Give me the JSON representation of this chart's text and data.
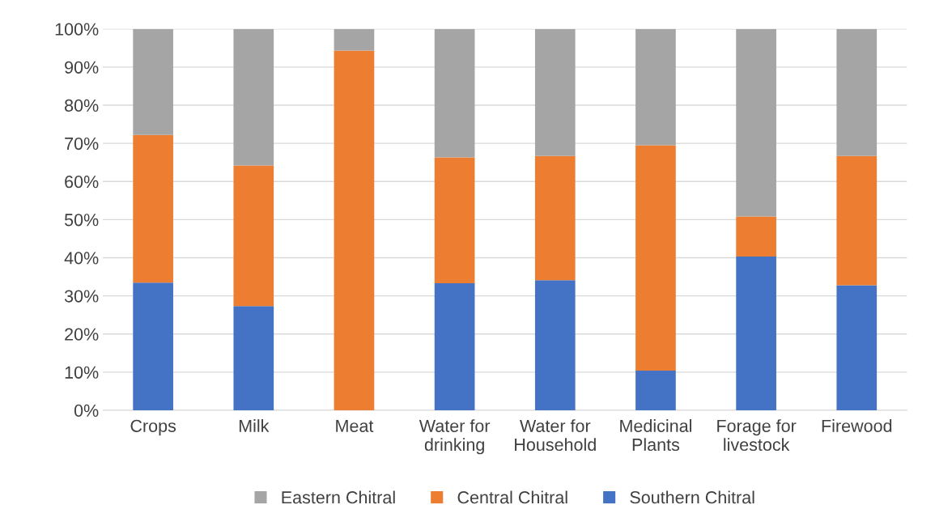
{
  "chart_data": {
    "type": "bar",
    "stacked": true,
    "categories": [
      "Crops",
      "Milk",
      "Meat",
      "Water for\ndrinking",
      "Water for\nHousehold",
      "Medicinal\nPlants",
      "Forage for\nlivestock",
      "Firewood"
    ],
    "series": [
      {
        "name": "Southern Chitral",
        "color": "#4472c4",
        "values": [
          33.5,
          27.3,
          0,
          33.3,
          34.1,
          10.4,
          40.3,
          32.8
        ]
      },
      {
        "name": "Central Chitral",
        "color": "#ed7d31",
        "values": [
          38.7,
          36.9,
          94.3,
          33.0,
          32.6,
          59.1,
          10.5,
          33.9
        ]
      },
      {
        "name": "Eastern Chitral",
        "color": "#a5a5a5",
        "values": [
          27.8,
          35.8,
          5.7,
          33.7,
          33.3,
          30.5,
          49.2,
          33.3
        ]
      }
    ],
    "ylim": [
      0,
      100
    ],
    "yticks": [
      {
        "value": 0,
        "label": "0%"
      },
      {
        "value": 10,
        "label": "10%"
      },
      {
        "value": 20,
        "label": "20%"
      },
      {
        "value": 30,
        "label": "30%"
      },
      {
        "value": 40,
        "label": "40%"
      },
      {
        "value": 50,
        "label": "50%"
      },
      {
        "value": 60,
        "label": "60%"
      },
      {
        "value": 70,
        "label": "70%"
      },
      {
        "value": 80,
        "label": "80%"
      },
      {
        "value": 90,
        "label": "90%"
      },
      {
        "value": 100,
        "label": "100%"
      }
    ],
    "grid": "y",
    "legend": "bottom"
  }
}
